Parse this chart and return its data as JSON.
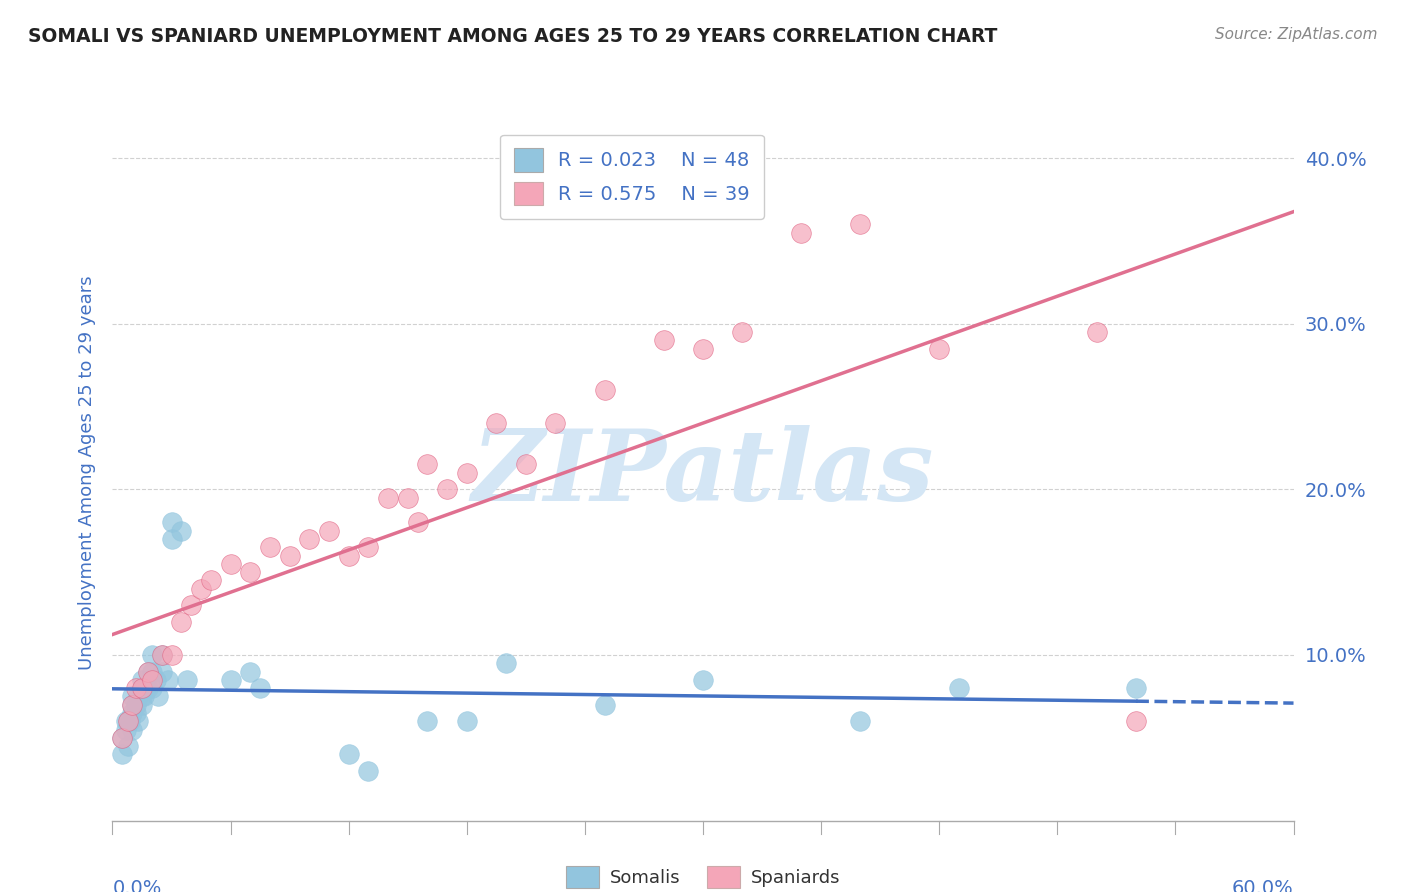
{
  "title": "SOMALI VS SPANIARD UNEMPLOYMENT AMONG AGES 25 TO 29 YEARS CORRELATION CHART",
  "source": "Source: ZipAtlas.com",
  "ylabel": "Unemployment Among Ages 25 to 29 years",
  "xlim": [
    0.0,
    0.6
  ],
  "ylim": [
    0.0,
    0.42
  ],
  "yticks": [
    0.1,
    0.2,
    0.3,
    0.4
  ],
  "ytick_labels": [
    "10.0%",
    "20.0%",
    "30.0%",
    "40.0%"
  ],
  "somali_color": "#92c5de",
  "somali_edge_color": "#5a9fc0",
  "spaniard_color": "#f4a6b8",
  "spaniard_edge_color": "#e06080",
  "somali_line_color": "#4472c4",
  "spaniard_line_color": "#e07090",
  "legend_r_somali": "R = 0.023",
  "legend_n_somali": "N = 48",
  "legend_r_spaniard": "R = 0.575",
  "legend_n_spaniard": "N = 39",
  "watermark": "ZIPatlas",
  "somali_x": [
    0.005,
    0.005,
    0.007,
    0.007,
    0.008,
    0.008,
    0.009,
    0.01,
    0.01,
    0.01,
    0.01,
    0.012,
    0.012,
    0.013,
    0.013,
    0.015,
    0.015,
    0.015,
    0.015,
    0.016,
    0.017,
    0.018,
    0.018,
    0.02,
    0.02,
    0.02,
    0.022,
    0.023,
    0.025,
    0.025,
    0.028,
    0.03,
    0.03,
    0.035,
    0.038,
    0.06,
    0.07,
    0.075,
    0.12,
    0.13,
    0.16,
    0.18,
    0.2,
    0.25,
    0.3,
    0.38,
    0.43,
    0.52
  ],
  "somali_y": [
    0.04,
    0.05,
    0.055,
    0.06,
    0.045,
    0.06,
    0.06,
    0.055,
    0.065,
    0.07,
    0.075,
    0.065,
    0.07,
    0.06,
    0.075,
    0.07,
    0.075,
    0.08,
    0.085,
    0.075,
    0.08,
    0.08,
    0.09,
    0.08,
    0.09,
    0.1,
    0.085,
    0.075,
    0.09,
    0.1,
    0.085,
    0.17,
    0.18,
    0.175,
    0.085,
    0.085,
    0.09,
    0.08,
    0.04,
    0.03,
    0.06,
    0.06,
    0.095,
    0.07,
    0.085,
    0.06,
    0.08,
    0.08
  ],
  "spaniard_x": [
    0.005,
    0.008,
    0.01,
    0.012,
    0.015,
    0.018,
    0.02,
    0.025,
    0.03,
    0.035,
    0.04,
    0.045,
    0.05,
    0.06,
    0.07,
    0.08,
    0.09,
    0.1,
    0.11,
    0.12,
    0.13,
    0.14,
    0.15,
    0.155,
    0.16,
    0.17,
    0.18,
    0.195,
    0.21,
    0.225,
    0.25,
    0.28,
    0.3,
    0.32,
    0.35,
    0.38,
    0.42,
    0.5,
    0.52
  ],
  "spaniard_y": [
    0.05,
    0.06,
    0.07,
    0.08,
    0.08,
    0.09,
    0.085,
    0.1,
    0.1,
    0.12,
    0.13,
    0.14,
    0.145,
    0.155,
    0.15,
    0.165,
    0.16,
    0.17,
    0.175,
    0.16,
    0.165,
    0.195,
    0.195,
    0.18,
    0.215,
    0.2,
    0.21,
    0.24,
    0.215,
    0.24,
    0.26,
    0.29,
    0.285,
    0.295,
    0.355,
    0.36,
    0.285,
    0.295,
    0.06
  ],
  "title_color": "#222222",
  "axis_label_color": "#4472c4",
  "tick_color": "#4472c4",
  "legend_text_color": "#4472c4",
  "grid_color": "#cccccc",
  "background_color": "#ffffff",
  "watermark_color": "#d4e6f5"
}
